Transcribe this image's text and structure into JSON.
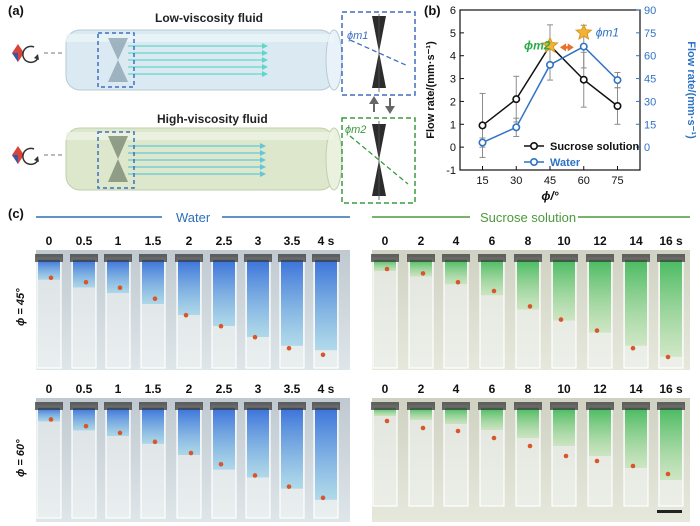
{
  "panels": {
    "a": "(a)",
    "b": "(b)",
    "c": "(c)"
  },
  "panel_a": {
    "low_title": "Low-viscosity fluid",
    "high_title": "High-viscosity fluid",
    "phi_m1": "ϕm1",
    "phi_m2": "ϕm2"
  },
  "panel_c": {
    "water_title": "Water",
    "sucrose_title": "Sucrose solution",
    "water_times": [
      "0",
      "0.5",
      "1",
      "1.5",
      "2",
      "2.5",
      "3",
      "3.5",
      "4 s"
    ],
    "sucrose_times": [
      "0",
      "2",
      "4",
      "6",
      "8",
      "10",
      "12",
      "14",
      "16 s"
    ],
    "row1_label": "ϕ = 45°",
    "row2_label": "ϕ = 60°"
  },
  "chart_data": {
    "type": "line",
    "x": [
      15,
      30,
      45,
      60,
      75
    ],
    "xlabel": "ϕ/°",
    "ylabel_left": "Flow rate/(mm·s⁻¹)",
    "ylabel_right": "Flow rate/(mm·s⁻¹)",
    "ylim_left": [
      -1,
      6
    ],
    "ylim_right": [
      -15,
      90
    ],
    "yticks_left": [
      -1,
      0,
      1,
      2,
      3,
      4,
      5,
      6
    ],
    "yticks_right": [
      0,
      15,
      30,
      45,
      60,
      75,
      90
    ],
    "xtick_labels": [
      "15",
      "30",
      "45",
      "60",
      "75"
    ],
    "ytick_labels_left": [
      "-1",
      "0",
      "1",
      "2",
      "3",
      "4",
      "5",
      "6"
    ],
    "ytick_labels_right": [
      "0",
      "15",
      "30",
      "45",
      "60",
      "75",
      "90"
    ],
    "series": [
      {
        "name": "Sucrose solution",
        "axis": "left",
        "color": "#111111",
        "values": [
          0.95,
          2.1,
          4.45,
          2.95,
          1.8
        ],
        "errors": [
          1.4,
          1.0,
          0.9,
          1.2,
          0.8
        ]
      },
      {
        "name": "Water",
        "axis": "right",
        "color": "#2f73c4",
        "values": [
          3,
          13,
          54,
          66,
          44
        ],
        "errors": [
          3,
          6,
          10,
          14,
          5
        ]
      }
    ],
    "annotations": [
      {
        "text": "ϕm2",
        "color": "#2ba84a",
        "near": "x=45"
      },
      {
        "text": "ϕm1",
        "color": "#2f73c4",
        "near": "x=60"
      }
    ],
    "legend_position": "bottom-right",
    "colors": {
      "star": "#f2b233",
      "arrow": "#e8722c"
    }
  },
  "colors": {
    "water_dye": "#2a6fd6",
    "sucrose_dye": "#3cb94a",
    "dot": "#d8562a",
    "dash_blue": "#3f6fc1",
    "dash_green": "#3a9b3f"
  }
}
